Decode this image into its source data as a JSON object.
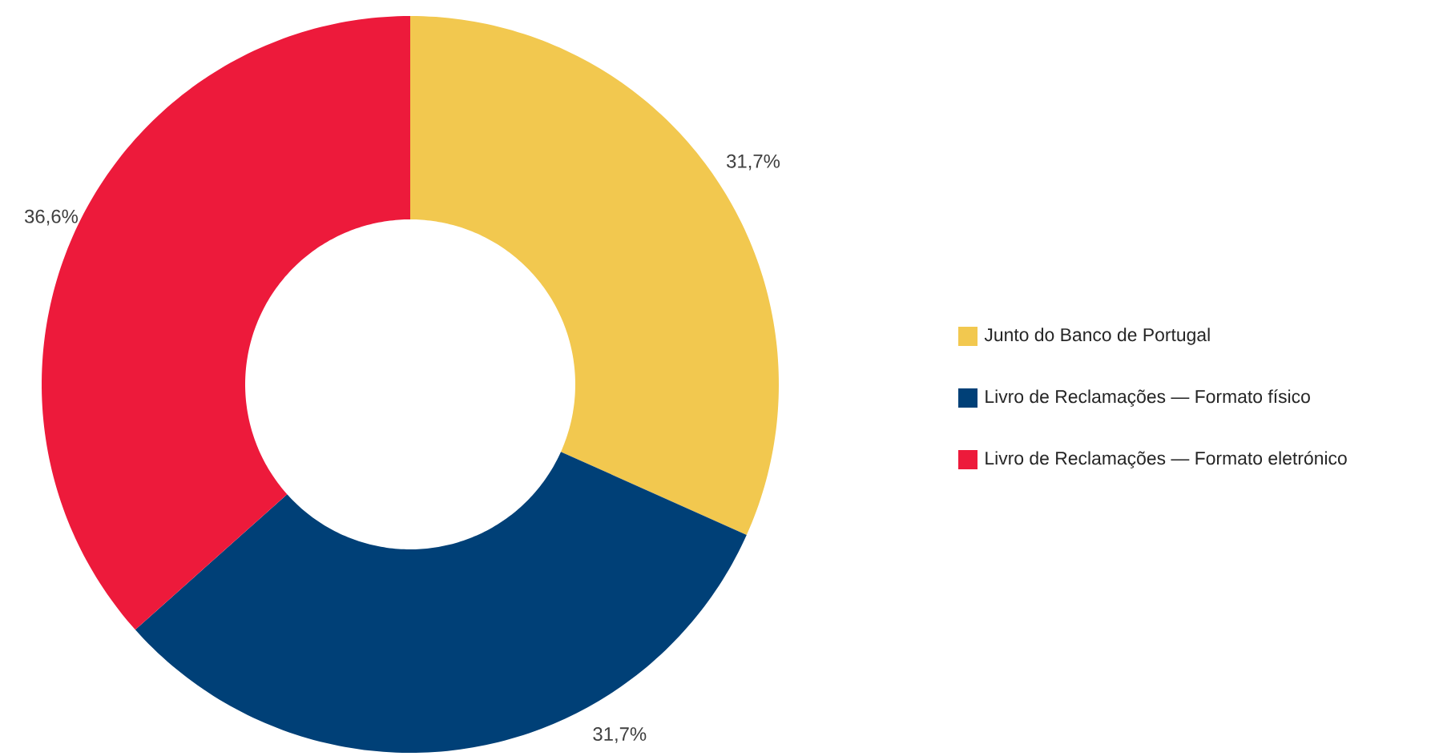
{
  "chart_data": {
    "type": "donut",
    "categories": [
      "Junto do Banco de Portugal",
      "Livro de Reclamações — Formato físico",
      "Livro de Reclamações — Formato eletrónico"
    ],
    "values": [
      31.7,
      31.7,
      36.6
    ],
    "colors": [
      "#f2c84f",
      "#004077",
      "#ed1a3b"
    ],
    "value_labels": [
      "31,7%",
      "31,7%",
      "36,6%"
    ],
    "legend": "right"
  }
}
